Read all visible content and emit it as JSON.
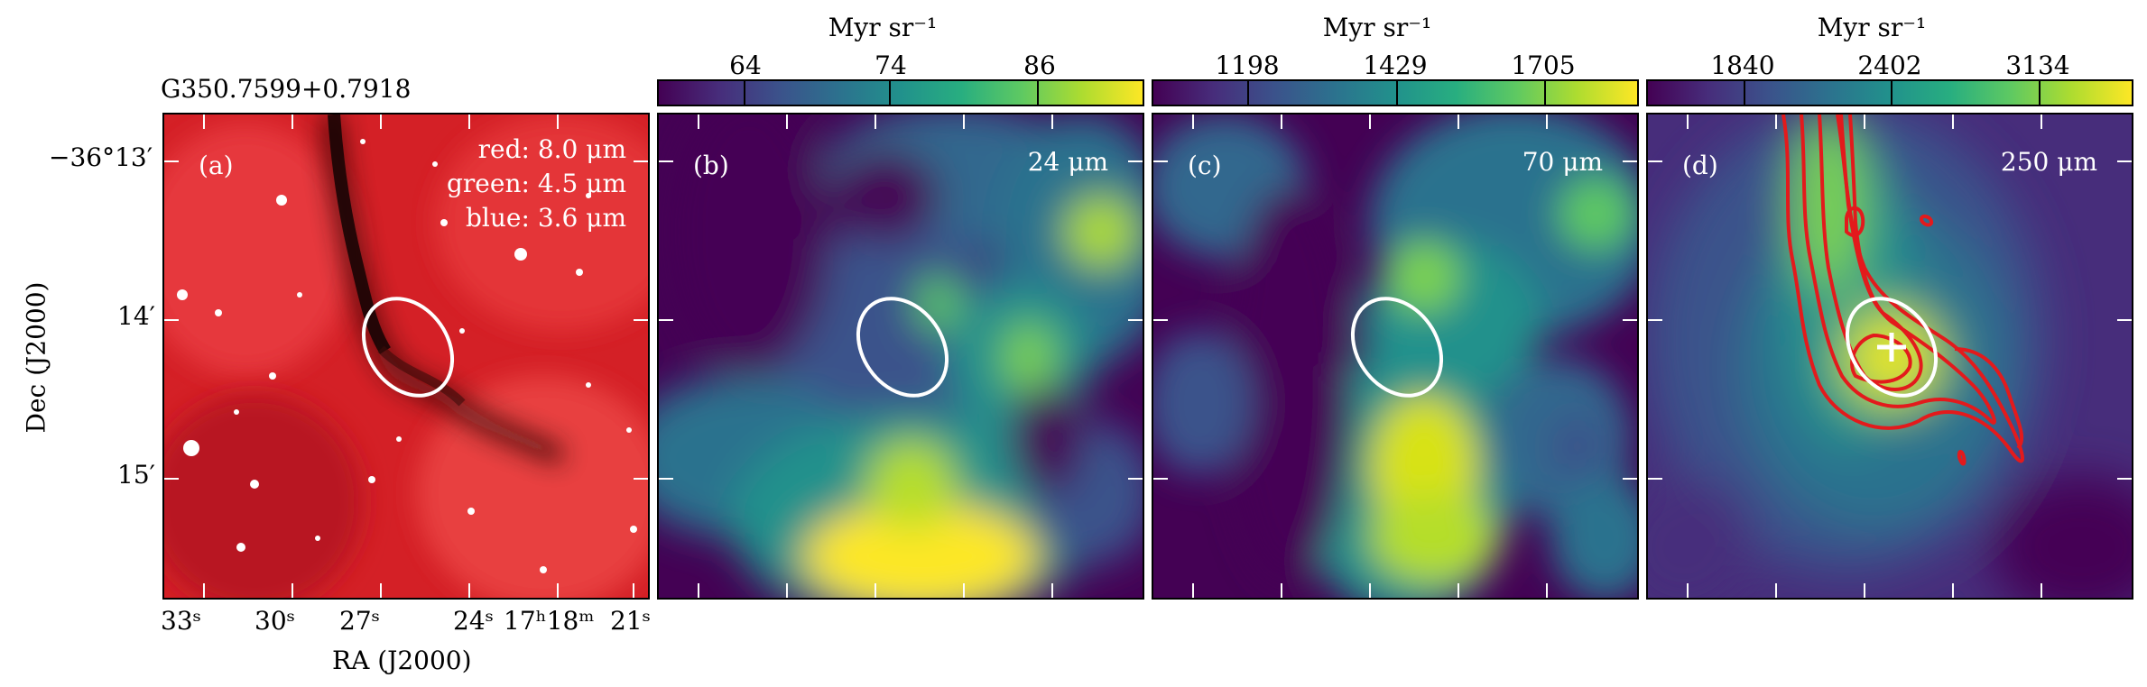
{
  "source_name": "G350.7599+0.7918",
  "panels": [
    {
      "id": "a",
      "label": "(a)",
      "legend": [
        "red: 8.0 μm",
        "green: 4.5 μm",
        "blue: 3.6 μm"
      ]
    },
    {
      "id": "b",
      "label": "(b)",
      "wavelength": "24 μm"
    },
    {
      "id": "c",
      "label": "(c)",
      "wavelength": "70 μm"
    },
    {
      "id": "d",
      "label": "(d)",
      "wavelength": "250 μm"
    }
  ],
  "colorbars": [
    {
      "unit": "Myr sr⁻¹",
      "ticks": [
        "64",
        "74",
        "86"
      ]
    },
    {
      "unit": "Myr sr⁻¹",
      "ticks": [
        "1198",
        "1429",
        "1705"
      ]
    },
    {
      "unit": "Myr sr⁻¹",
      "ticks": [
        "1840",
        "2402",
        "3134"
      ]
    }
  ],
  "axes": {
    "ylabel": "Dec (J2000)",
    "xlabel": "RA (J2000)",
    "yticks": [
      "−36°13′",
      "14′",
      "15′"
    ],
    "xticks": [
      "33ˢ",
      "30ˢ",
      "27ˢ",
      "24ˢ",
      "17ʰ18ᵐ",
      "21ˢ"
    ]
  },
  "colors": {
    "viridis_dark": "#440154",
    "viridis_mid": "#21918c",
    "viridis_light": "#fde725",
    "ellipse": "#ffffff",
    "contour": "#e31a1c"
  }
}
